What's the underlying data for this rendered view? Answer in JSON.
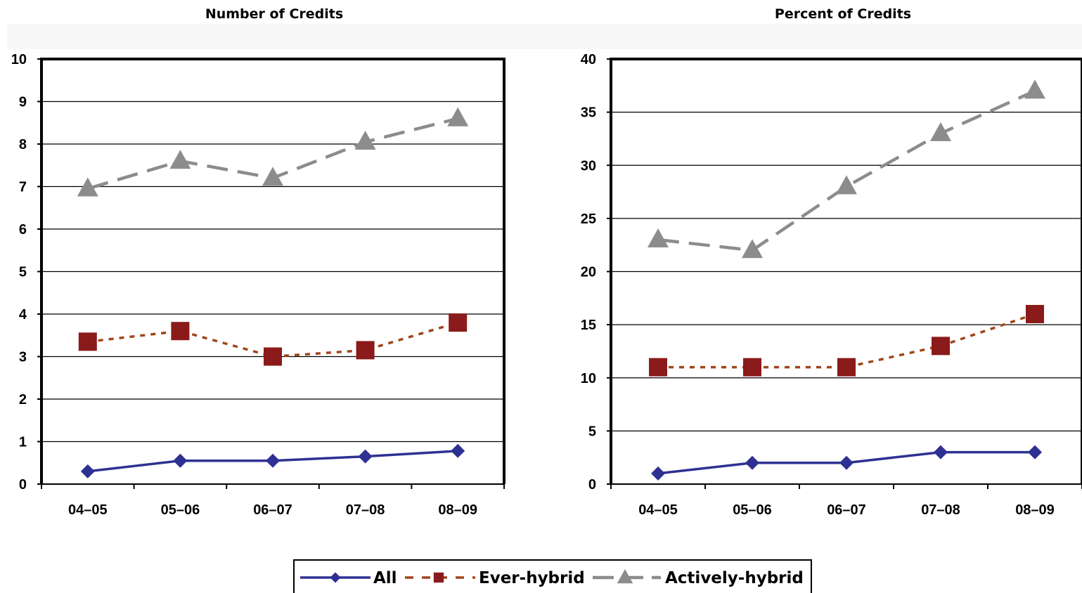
{
  "chart_data": [
    {
      "type": "line",
      "title": "Number of Credits",
      "categories": [
        "04–05",
        "05–06",
        "06–07",
        "07–08",
        "08–09"
      ],
      "ylim": [
        0,
        10
      ],
      "yticks": [
        "0",
        "1",
        "2",
        "3",
        "4",
        "5",
        "6",
        "7",
        "8",
        "9",
        "10"
      ],
      "grid": true,
      "series": [
        {
          "name": "All",
          "values": [
            0.3,
            0.55,
            0.55,
            0.65,
            0.78
          ]
        },
        {
          "name": "Ever-hybrid",
          "values": [
            3.35,
            3.6,
            3.0,
            3.15,
            3.8
          ]
        },
        {
          "name": "Actively-hybrid",
          "values": [
            6.95,
            7.6,
            7.2,
            8.05,
            8.6
          ]
        }
      ]
    },
    {
      "type": "line",
      "title": "Percent of Credits",
      "categories": [
        "04–05",
        "05–06",
        "06–07",
        "07–08",
        "08–09"
      ],
      "ylim": [
        0,
        40
      ],
      "yticks": [
        "0",
        "5",
        "10",
        "15",
        "20",
        "25",
        "30",
        "35",
        "40"
      ],
      "grid": true,
      "series": [
        {
          "name": "All",
          "values": [
            1,
            2,
            2,
            3,
            3
          ]
        },
        {
          "name": "Ever-hybrid",
          "values": [
            11,
            11,
            11,
            13,
            16
          ]
        },
        {
          "name": "Actively-hybrid",
          "values": [
            23,
            22,
            28,
            33,
            37
          ]
        }
      ]
    }
  ],
  "legend": {
    "placement": "bottom",
    "items": [
      {
        "label": "All",
        "color": "#2E3192",
        "marker": "diamond",
        "dash": "solid"
      },
      {
        "label": "Ever-hybrid",
        "color": "#8B1A1A",
        "line_color": "#A0451A",
        "marker": "square",
        "dash": "dashed"
      },
      {
        "label": "Actively-hybrid",
        "color": "#8C8C8C",
        "marker": "triangle",
        "dash": "long-dash"
      }
    ]
  }
}
